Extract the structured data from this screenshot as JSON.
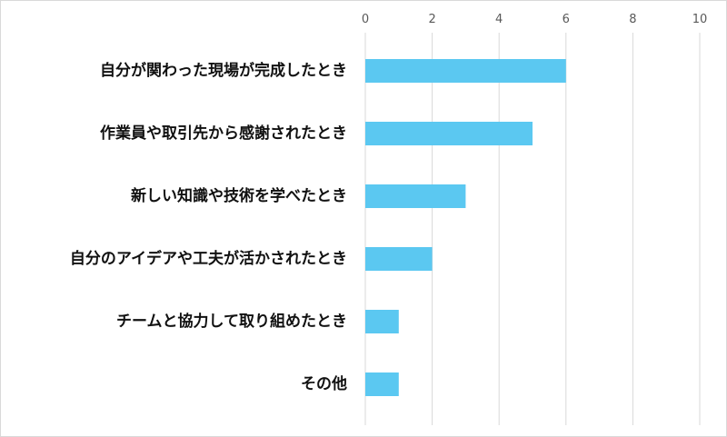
{
  "chart_data": {
    "type": "bar",
    "orientation": "horizontal",
    "categories": [
      "自分が関わった現場が完成したとき",
      "作業員や取引先から感謝されたとき",
      "新しい知識や技術を学べたとき",
      "自分のアイデアや工夫が活かされたとき",
      "チームと協力して取り組めたとき",
      "その他"
    ],
    "values": [
      6,
      5,
      3,
      2,
      1,
      1
    ],
    "xlim": [
      0,
      10
    ],
    "xticks": [
      0,
      2,
      4,
      6,
      8,
      10
    ],
    "xtick_labels": [
      "0",
      "2",
      "4",
      "6",
      "8",
      "10"
    ],
    "axis_position": "top",
    "grid": true,
    "legend": "none",
    "title": "",
    "xlabel": "",
    "ylabel": "",
    "colors": {
      "bar": "#5bc8f1",
      "grid": "#d9d9d9",
      "tick_text": "#595959",
      "label_text": "#111111"
    }
  }
}
